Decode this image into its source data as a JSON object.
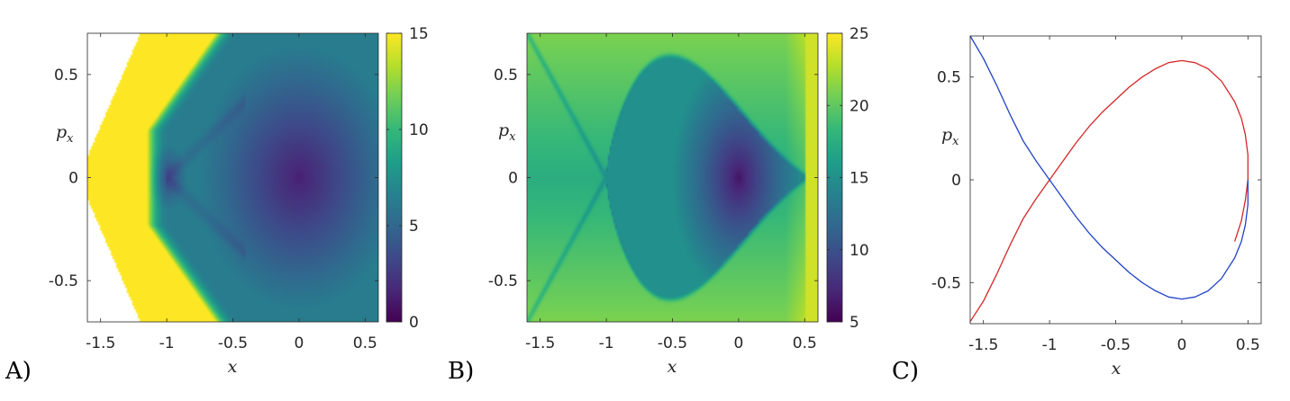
{
  "colors": {
    "viridis": [
      "#440154",
      "#482878",
      "#3e4989",
      "#31688e",
      "#26828e",
      "#1f9e89",
      "#35b779",
      "#6ece58",
      "#b5de2b",
      "#fde725"
    ],
    "red_curve": "#d62728",
    "blue_curve": "#2043c8"
  },
  "chart_data": [
    {
      "panel_label": "A)",
      "type": "heatmap",
      "title": "",
      "xlabel": "x",
      "ylabel": "p_x",
      "xlim": [
        -1.6,
        0.6
      ],
      "ylim": [
        -0.7,
        0.7
      ],
      "xticks": [
        -1.5,
        -1,
        -0.5,
        0,
        0.5
      ],
      "xtick_labels": [
        "-1.5",
        "-1",
        "-0.5",
        "0",
        "0.5"
      ],
      "yticks": [
        0.5,
        0,
        -0.5
      ],
      "ytick_labels": [
        "0.5",
        "0",
        "-0.5"
      ],
      "colorbar": {
        "range": [
          0,
          15
        ],
        "ticks": [
          0,
          5,
          10,
          15
        ],
        "tick_labels": [
          "0",
          "5",
          "10",
          "15"
        ]
      },
      "features": {
        "white_region_boundary": [
          [
            -1.2,
            0.7
          ],
          [
            -1.6,
            0.1
          ],
          [
            -1.6,
            -0.1
          ],
          [
            -1.2,
            -0.7
          ]
        ],
        "saturated_band_edge": [
          [
            -0.63,
            0.7
          ],
          [
            -1.15,
            0.23
          ],
          [
            -1.15,
            -0.23
          ],
          [
            -0.63,
            -0.7
          ]
        ],
        "minimum_points": [
          [
            0,
            0
          ],
          [
            -1,
            0
          ]
        ]
      }
    },
    {
      "panel_label": "B)",
      "type": "heatmap",
      "title": "",
      "xlabel": "x",
      "ylabel": "p_x",
      "xlim": [
        -1.6,
        0.6
      ],
      "ylim": [
        -0.7,
        0.7
      ],
      "xticks": [
        -1.5,
        -1,
        -0.5,
        0,
        0.5
      ],
      "xtick_labels": [
        "-1.5",
        "-1",
        "-0.5",
        "0",
        "0.5"
      ],
      "yticks": [
        0.5,
        0,
        -0.5
      ],
      "ytick_labels": [
        "0.5",
        "0",
        "-0.5"
      ],
      "colorbar": {
        "range": [
          5,
          25
        ],
        "ticks": [
          5,
          10,
          15,
          20,
          25
        ],
        "tick_labels": [
          "5",
          "10",
          "15",
          "20",
          "25"
        ]
      },
      "features": {
        "separatrix_loop_right_x": 0.5,
        "saddle_point": [
          -1,
          0
        ],
        "minimum_point": [
          0,
          0
        ]
      }
    },
    {
      "panel_label": "C)",
      "type": "line",
      "title": "",
      "xlabel": "x",
      "ylabel": "p_x",
      "xlim": [
        -1.6,
        0.6
      ],
      "ylim": [
        -0.7,
        0.7
      ],
      "xticks": [
        -1.5,
        -1,
        -0.5,
        0,
        0.5
      ],
      "xtick_labels": [
        "-1.5",
        "-1",
        "-0.5",
        "0",
        "0.5"
      ],
      "yticks": [
        0.5,
        0,
        -0.5
      ],
      "ytick_labels": [
        "0.5",
        "0",
        "-0.5"
      ],
      "series": [
        {
          "color": "#d62728",
          "x": [
            -1.6,
            -1.5,
            -1.4,
            -1.3,
            -1.2,
            -1.1,
            -1.0,
            -0.9,
            -0.8,
            -0.7,
            -0.6,
            -0.5,
            -0.4,
            -0.3,
            -0.2,
            -0.1,
            0.0,
            0.1,
            0.2,
            0.3,
            0.4,
            0.45,
            0.48,
            0.5,
            0.5,
            0.48,
            0.45,
            0.4
          ],
          "y": [
            -0.69,
            -0.59,
            -0.46,
            -0.32,
            -0.19,
            -0.09,
            0.0,
            0.09,
            0.18,
            0.26,
            0.33,
            0.39,
            0.45,
            0.5,
            0.54,
            0.57,
            0.58,
            0.57,
            0.54,
            0.48,
            0.38,
            0.3,
            0.22,
            0.12,
            0.0,
            -0.1,
            -0.2,
            -0.3
          ]
        },
        {
          "color": "#2043c8",
          "x": [
            -1.6,
            -1.5,
            -1.4,
            -1.3,
            -1.2,
            -1.1,
            -1.0,
            -0.9,
            -0.8,
            -0.7,
            -0.6,
            -0.5,
            -0.4,
            -0.3,
            -0.2,
            -0.1,
            0.0,
            0.1,
            0.2,
            0.3,
            0.4,
            0.45,
            0.48,
            0.5,
            0.5
          ],
          "y": [
            0.7,
            0.59,
            0.46,
            0.32,
            0.19,
            0.09,
            0.0,
            -0.09,
            -0.18,
            -0.26,
            -0.33,
            -0.39,
            -0.45,
            -0.5,
            -0.54,
            -0.57,
            -0.58,
            -0.57,
            -0.54,
            -0.48,
            -0.38,
            -0.3,
            -0.22,
            -0.12,
            0.0
          ]
        }
      ]
    }
  ]
}
